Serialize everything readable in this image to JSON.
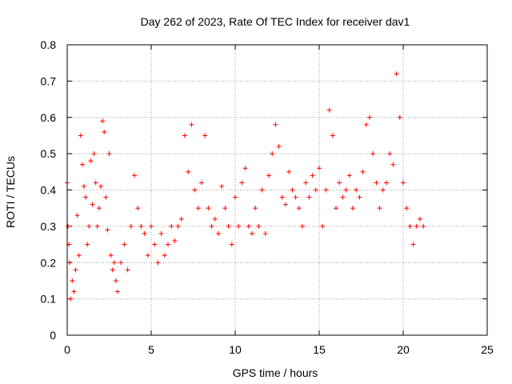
{
  "chart_data": {
    "type": "scatter",
    "title": "Day 262 of 2023, Rate Of TEC Index for receiver dav1",
    "xlabel": "GPS time / hours",
    "ylabel": "ROTI / TECUs",
    "xlim": [
      0,
      25
    ],
    "ylim": [
      0,
      0.8
    ],
    "x_ticks": [
      0,
      5,
      10,
      15,
      20,
      25
    ],
    "x_tick_labels": [
      "0",
      "5",
      "10",
      "15",
      "20",
      "25"
    ],
    "y_ticks": [
      0,
      0.1,
      0.2,
      0.3,
      0.4,
      0.5,
      0.6,
      0.7,
      0.8
    ],
    "y_tick_labels": [
      "0",
      "0.1",
      "0.2",
      "0.3",
      "0.4",
      "0.5",
      "0.6",
      "0.7",
      "0.8"
    ],
    "grid": true,
    "legend": "none",
    "marker": "+",
    "color": "#ff0000",
    "series": [
      {
        "x": [
          0.0,
          0.05,
          0.1,
          0.15,
          0.2,
          0.3,
          0.4,
          0.5,
          0.6,
          0.7,
          0.8,
          0.9,
          1.0,
          1.1,
          1.2,
          1.3,
          1.4,
          1.5,
          1.6,
          1.7,
          1.8,
          1.9,
          2.0,
          2.1,
          2.2,
          2.3,
          2.4,
          2.5,
          2.6,
          2.7,
          2.8,
          2.9,
          3.0,
          3.2,
          3.4,
          3.6,
          3.8,
          4.0,
          4.2,
          4.4,
          4.6,
          4.8,
          5.0,
          5.2,
          5.4,
          5.6,
          5.8,
          6.0,
          6.2,
          6.4,
          6.6,
          6.8,
          7.0,
          7.2,
          7.4,
          7.6,
          7.8,
          8.0,
          8.2,
          8.4,
          8.6,
          8.8,
          9.0,
          9.2,
          9.4,
          9.6,
          9.8,
          10.0,
          10.2,
          10.4,
          10.6,
          10.8,
          11.0,
          11.2,
          11.4,
          11.6,
          11.8,
          12.0,
          12.2,
          12.4,
          12.6,
          12.8,
          13.0,
          13.2,
          13.4,
          13.6,
          13.8,
          14.0,
          14.2,
          14.4,
          14.6,
          14.8,
          15.0,
          15.2,
          15.4,
          15.6,
          15.8,
          16.0,
          16.2,
          16.4,
          16.6,
          16.8,
          17.0,
          17.2,
          17.4,
          17.6,
          17.8,
          18.0,
          18.2,
          18.4,
          18.6,
          18.8,
          19.0,
          19.2,
          19.4,
          19.6,
          19.8,
          20.0,
          20.2,
          20.4,
          20.6,
          20.8,
          21.0,
          21.2
        ],
        "y": [
          0.42,
          0.3,
          0.25,
          0.2,
          0.1,
          0.15,
          0.12,
          0.18,
          0.33,
          0.22,
          0.55,
          0.47,
          0.41,
          0.38,
          0.25,
          0.3,
          0.48,
          0.36,
          0.5,
          0.42,
          0.3,
          0.35,
          0.41,
          0.59,
          0.56,
          0.38,
          0.29,
          0.5,
          0.22,
          0.18,
          0.2,
          0.15,
          0.12,
          0.2,
          0.25,
          0.18,
          0.3,
          0.44,
          0.35,
          0.3,
          0.28,
          0.22,
          0.3,
          0.25,
          0.2,
          0.28,
          0.22,
          0.25,
          0.3,
          0.26,
          0.3,
          0.32,
          0.55,
          0.45,
          0.58,
          0.4,
          0.35,
          0.42,
          0.55,
          0.35,
          0.3,
          0.32,
          0.28,
          0.41,
          0.35,
          0.3,
          0.25,
          0.38,
          0.3,
          0.42,
          0.46,
          0.3,
          0.28,
          0.35,
          0.3,
          0.4,
          0.28,
          0.44,
          0.5,
          0.58,
          0.52,
          0.38,
          0.36,
          0.45,
          0.4,
          0.38,
          0.35,
          0.3,
          0.42,
          0.38,
          0.44,
          0.4,
          0.46,
          0.3,
          0.4,
          0.62,
          0.55,
          0.35,
          0.42,
          0.38,
          0.4,
          0.44,
          0.35,
          0.4,
          0.38,
          0.45,
          0.58,
          0.6,
          0.5,
          0.42,
          0.35,
          0.4,
          0.42,
          0.5,
          0.47,
          0.72,
          0.6,
          0.42,
          0.35,
          0.3,
          0.25,
          0.3,
          0.32,
          0.3
        ]
      }
    ]
  }
}
